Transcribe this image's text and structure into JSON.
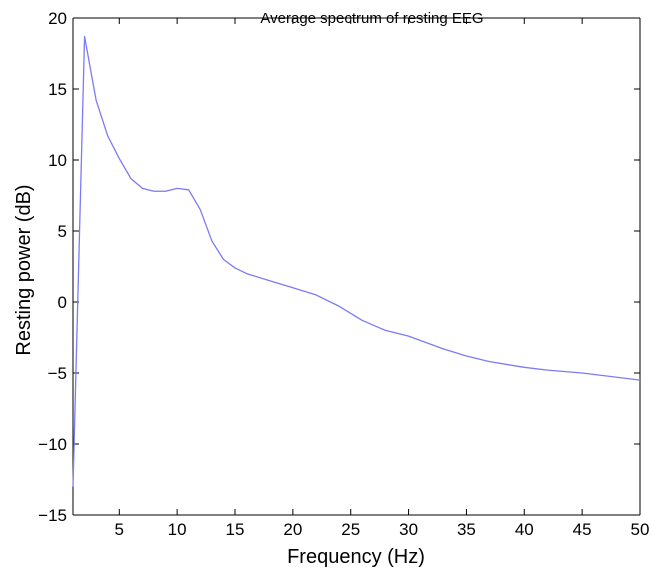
{
  "chart_data": {
    "type": "line",
    "title": "Average spectrum of resting EEG",
    "xlabel": "Frequency (Hz)",
    "ylabel": "Resting power (dB)",
    "xlim": [
      1,
      50
    ],
    "ylim": [
      -15,
      20
    ],
    "xticks": [
      5,
      10,
      15,
      20,
      25,
      30,
      35,
      40,
      45,
      50
    ],
    "yticks": [
      -15,
      -10,
      -5,
      0,
      5,
      10,
      15,
      20
    ],
    "xtick_labels": [
      "5",
      "10",
      "15",
      "20",
      "25",
      "30",
      "35",
      "40",
      "45",
      "50"
    ],
    "ytick_labels": [
      "−15",
      "−10",
      "−5",
      "0",
      "5",
      "10",
      "15",
      "20"
    ],
    "grid": false,
    "line_color": "#7b7bf5",
    "series": [
      {
        "x": [
          1,
          2,
          3,
          4,
          5,
          6,
          7,
          8,
          9,
          10,
          11,
          12,
          13,
          14,
          15,
          16,
          18,
          20,
          22,
          24,
          26,
          28,
          30,
          31,
          33,
          35,
          37,
          40,
          42,
          45,
          48,
          50
        ],
        "y": [
          -13.0,
          18.7,
          14.2,
          11.7,
          10.1,
          8.7,
          8.0,
          7.8,
          7.8,
          8.0,
          7.9,
          6.5,
          4.3,
          3.0,
          2.4,
          2.0,
          1.5,
          1.0,
          0.5,
          -0.3,
          -1.3,
          -2.0,
          -2.4,
          -2.7,
          -3.3,
          -3.8,
          -4.2,
          -4.6,
          -4.8,
          -5.0,
          -5.3,
          -5.5
        ]
      }
    ]
  }
}
